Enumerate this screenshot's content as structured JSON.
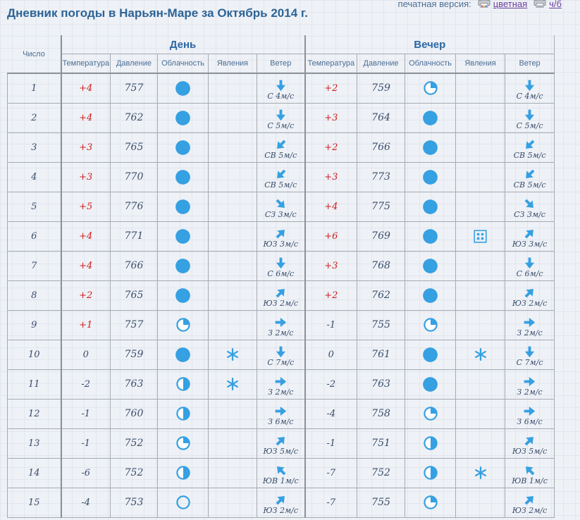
{
  "page": {
    "title": "Дневник погоды в Нарьян-Маре за Октябрь 2014 г.",
    "print_label": "печатная версия:",
    "print_color_link": "цветная",
    "print_bw_link": "ч/б"
  },
  "colors": {
    "accent_blue": "#35a0e2",
    "title_blue": "#2d6496",
    "temp_positive_red": "#cf1d1d",
    "value_dark": "#394d6b",
    "link_purple": "#6b3fa0"
  },
  "table": {
    "day_column_header": "Число",
    "group_headers": [
      "День",
      "Вечер"
    ],
    "subheaders": [
      "Температура",
      "Давление",
      "Облачность",
      "Явления",
      "Ветер"
    ],
    "rows": [
      {
        "day": "1",
        "daytime": {
          "temp": "+4",
          "pressure": "757",
          "cloud": "overcast",
          "phenomenon": "none",
          "wind_dir": "С",
          "wind_speed": "4м/с",
          "wind_arrow": "down"
        },
        "evening": {
          "temp": "+2",
          "pressure": "759",
          "cloud": "quarter",
          "phenomenon": "none",
          "wind_dir": "С",
          "wind_speed": "4м/с",
          "wind_arrow": "down"
        }
      },
      {
        "day": "2",
        "daytime": {
          "temp": "+4",
          "pressure": "762",
          "cloud": "overcast",
          "phenomenon": "none",
          "wind_dir": "С",
          "wind_speed": "5м/с",
          "wind_arrow": "down"
        },
        "evening": {
          "temp": "+3",
          "pressure": "764",
          "cloud": "overcast",
          "phenomenon": "none",
          "wind_dir": "С",
          "wind_speed": "5м/с",
          "wind_arrow": "down"
        }
      },
      {
        "day": "3",
        "daytime": {
          "temp": "+3",
          "pressure": "765",
          "cloud": "overcast",
          "phenomenon": "none",
          "wind_dir": "СВ",
          "wind_speed": "5м/с",
          "wind_arrow": "down-left"
        },
        "evening": {
          "temp": "+2",
          "pressure": "766",
          "cloud": "overcast",
          "phenomenon": "none",
          "wind_dir": "СВ",
          "wind_speed": "5м/с",
          "wind_arrow": "down-left"
        }
      },
      {
        "day": "4",
        "daytime": {
          "temp": "+3",
          "pressure": "770",
          "cloud": "overcast",
          "phenomenon": "none",
          "wind_dir": "СВ",
          "wind_speed": "5м/с",
          "wind_arrow": "down-left"
        },
        "evening": {
          "temp": "+3",
          "pressure": "773",
          "cloud": "overcast",
          "phenomenon": "none",
          "wind_dir": "СВ",
          "wind_speed": "5м/с",
          "wind_arrow": "down-left"
        }
      },
      {
        "day": "5",
        "daytime": {
          "temp": "+5",
          "pressure": "776",
          "cloud": "overcast",
          "phenomenon": "none",
          "wind_dir": "СЗ",
          "wind_speed": "3м/с",
          "wind_arrow": "down-right"
        },
        "evening": {
          "temp": "+4",
          "pressure": "775",
          "cloud": "overcast",
          "phenomenon": "none",
          "wind_dir": "СЗ",
          "wind_speed": "3м/с",
          "wind_arrow": "down-right"
        }
      },
      {
        "day": "6",
        "daytime": {
          "temp": "+4",
          "pressure": "771",
          "cloud": "overcast",
          "phenomenon": "none",
          "wind_dir": "ЮЗ",
          "wind_speed": "3м/с",
          "wind_arrow": "up-right"
        },
        "evening": {
          "temp": "+6",
          "pressure": "769",
          "cloud": "overcast",
          "phenomenon": "dots",
          "wind_dir": "ЮЗ",
          "wind_speed": "3м/с",
          "wind_arrow": "up-right"
        }
      },
      {
        "day": "7",
        "daytime": {
          "temp": "+4",
          "pressure": "766",
          "cloud": "overcast",
          "phenomenon": "none",
          "wind_dir": "С",
          "wind_speed": "6м/с",
          "wind_arrow": "down"
        },
        "evening": {
          "temp": "+3",
          "pressure": "768",
          "cloud": "overcast",
          "phenomenon": "none",
          "wind_dir": "С",
          "wind_speed": "6м/с",
          "wind_arrow": "down"
        }
      },
      {
        "day": "8",
        "daytime": {
          "temp": "+2",
          "pressure": "765",
          "cloud": "overcast",
          "phenomenon": "none",
          "wind_dir": "ЮЗ",
          "wind_speed": "2м/с",
          "wind_arrow": "up-right"
        },
        "evening": {
          "temp": "+2",
          "pressure": "762",
          "cloud": "overcast",
          "phenomenon": "none",
          "wind_dir": "ЮЗ",
          "wind_speed": "2м/с",
          "wind_arrow": "up-right"
        }
      },
      {
        "day": "9",
        "daytime": {
          "temp": "+1",
          "pressure": "757",
          "cloud": "quarter",
          "phenomenon": "none",
          "wind_dir": "З",
          "wind_speed": "2м/с",
          "wind_arrow": "right"
        },
        "evening": {
          "temp": "-1",
          "pressure": "755",
          "cloud": "quarter",
          "phenomenon": "none",
          "wind_dir": "З",
          "wind_speed": "2м/с",
          "wind_arrow": "right"
        }
      },
      {
        "day": "10",
        "daytime": {
          "temp": "0",
          "pressure": "759",
          "cloud": "overcast",
          "phenomenon": "snow",
          "wind_dir": "С",
          "wind_speed": "7м/с",
          "wind_arrow": "down"
        },
        "evening": {
          "temp": "0",
          "pressure": "761",
          "cloud": "overcast",
          "phenomenon": "snow",
          "wind_dir": "С",
          "wind_speed": "7м/с",
          "wind_arrow": "down"
        }
      },
      {
        "day": "11",
        "daytime": {
          "temp": "-2",
          "pressure": "763",
          "cloud": "half",
          "phenomenon": "snow",
          "wind_dir": "З",
          "wind_speed": "2м/с",
          "wind_arrow": "right"
        },
        "evening": {
          "temp": "-2",
          "pressure": "763",
          "cloud": "overcast",
          "phenomenon": "none",
          "wind_dir": "З",
          "wind_speed": "2м/с",
          "wind_arrow": "right"
        }
      },
      {
        "day": "12",
        "daytime": {
          "temp": "-1",
          "pressure": "760",
          "cloud": "half",
          "phenomenon": "none",
          "wind_dir": "З",
          "wind_speed": "6м/с",
          "wind_arrow": "right"
        },
        "evening": {
          "temp": "-4",
          "pressure": "758",
          "cloud": "quarter",
          "phenomenon": "none",
          "wind_dir": "З",
          "wind_speed": "6м/с",
          "wind_arrow": "right"
        }
      },
      {
        "day": "13",
        "daytime": {
          "temp": "-1",
          "pressure": "752",
          "cloud": "quarter",
          "phenomenon": "none",
          "wind_dir": "ЮЗ",
          "wind_speed": "5м/с",
          "wind_arrow": "up-right"
        },
        "evening": {
          "temp": "-1",
          "pressure": "751",
          "cloud": "half",
          "phenomenon": "none",
          "wind_dir": "ЮЗ",
          "wind_speed": "5м/с",
          "wind_arrow": "up-right"
        }
      },
      {
        "day": "14",
        "daytime": {
          "temp": "-6",
          "pressure": "752",
          "cloud": "half",
          "phenomenon": "none",
          "wind_dir": "ЮВ",
          "wind_speed": "1м/с",
          "wind_arrow": "up-left"
        },
        "evening": {
          "temp": "-7",
          "pressure": "752",
          "cloud": "half",
          "phenomenon": "snow",
          "wind_dir": "ЮВ",
          "wind_speed": "1м/с",
          "wind_arrow": "up-left"
        }
      },
      {
        "day": "15",
        "daytime": {
          "temp": "-4",
          "pressure": "753",
          "cloud": "clear",
          "phenomenon": "none",
          "wind_dir": "ЮЗ",
          "wind_speed": "2м/с",
          "wind_arrow": "up-right"
        },
        "evening": {
          "temp": "-7",
          "pressure": "755",
          "cloud": "quarter",
          "phenomenon": "none",
          "wind_dir": "ЮЗ",
          "wind_speed": "2м/с",
          "wind_arrow": "up-right"
        }
      }
    ]
  }
}
